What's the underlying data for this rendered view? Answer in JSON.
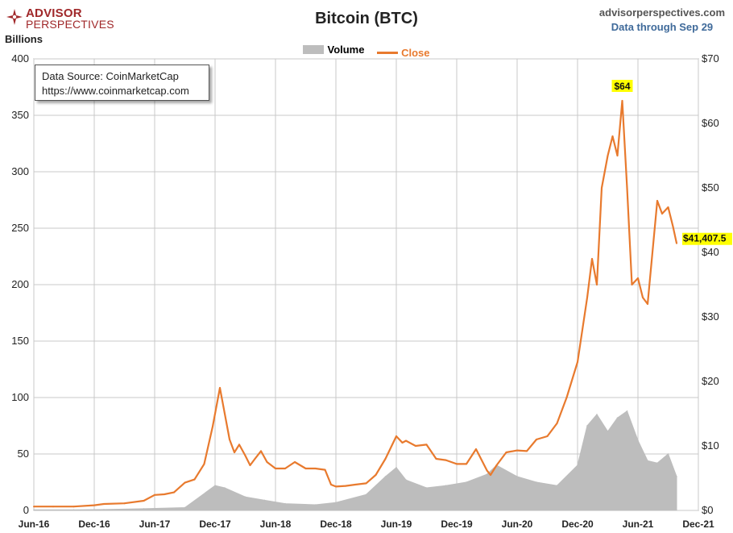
{
  "header": {
    "logo_line1": "ADVISOR",
    "logo_line2": "PERSPECTIVES",
    "title": "Bitcoin (BTC)",
    "site": "advisorperspectives.com",
    "data_through": "Data through Sep 29"
  },
  "source_box": {
    "line1": "Data Source: CoinMarketCap",
    "line2": "https://www.coinmarketcap.com"
  },
  "legend": {
    "volume": "Volume",
    "close": "Close"
  },
  "colors": {
    "close": "#e87a2e",
    "volume": "#bdbdbd",
    "highlight": "#ffff00",
    "grid": "#c8c8c8",
    "brand": "#a0282a"
  },
  "chart_data": {
    "type": "line",
    "ylabel_left": "Billions",
    "left_axis": {
      "min": 0,
      "max": 400,
      "ticks": [
        "0",
        "50",
        "100",
        "150",
        "200",
        "250",
        "300",
        "350",
        "400"
      ]
    },
    "right_axis": {
      "min": 0,
      "max": 70,
      "ticks": [
        "$0",
        "$10",
        "$20",
        "$30",
        "$40",
        "$50",
        "$60",
        "$70"
      ]
    },
    "x_ticks": [
      "Jun-16",
      "Dec-16",
      "Jun-17",
      "Dec-17",
      "Jun-18",
      "Dec-18",
      "Jun-19",
      "Dec-19",
      "Jun-20",
      "Dec-20",
      "Jun-21",
      "Dec-21"
    ],
    "grid": true,
    "legend_position": "top-center",
    "annotations": [
      {
        "text": "$64",
        "x": 2021.29,
        "y": 63.5
      },
      {
        "text": "$41,407.5",
        "x": 2021.74,
        "y": 41.4075
      }
    ],
    "series": [
      {
        "name": "Close",
        "axis": "right",
        "x": [
          2016.42,
          2016.58,
          2016.75,
          2016.92,
          2017.0,
          2017.17,
          2017.33,
          2017.42,
          2017.5,
          2017.58,
          2017.67,
          2017.75,
          2017.83,
          2017.9,
          2017.96,
          2018.0,
          2018.04,
          2018.08,
          2018.12,
          2018.17,
          2018.21,
          2018.25,
          2018.3,
          2018.35,
          2018.42,
          2018.5,
          2018.58,
          2018.67,
          2018.75,
          2018.83,
          2018.88,
          2018.92,
          2019.0,
          2019.08,
          2019.17,
          2019.25,
          2019.33,
          2019.42,
          2019.47,
          2019.5,
          2019.58,
          2019.67,
          2019.75,
          2019.83,
          2019.92,
          2020.0,
          2020.08,
          2020.17,
          2020.2,
          2020.25,
          2020.33,
          2020.42,
          2020.5,
          2020.58,
          2020.67,
          2020.75,
          2020.83,
          2020.92,
          2021.0,
          2021.04,
          2021.08,
          2021.12,
          2021.17,
          2021.21,
          2021.25,
          2021.29,
          2021.33,
          2021.37,
          2021.42,
          2021.46,
          2021.5,
          2021.54,
          2021.58,
          2021.62,
          2021.67,
          2021.71,
          2021.74
        ],
        "y": [
          0.6,
          0.6,
          0.6,
          0.8,
          1.0,
          1.1,
          1.5,
          2.4,
          2.5,
          2.8,
          4.3,
          4.8,
          7.2,
          13.0,
          19.0,
          15.0,
          11.0,
          9.0,
          10.2,
          8.5,
          7.0,
          8.0,
          9.2,
          7.5,
          6.5,
          6.5,
          7.5,
          6.5,
          6.5,
          6.3,
          4.0,
          3.7,
          3.8,
          4.0,
          4.2,
          5.5,
          8.0,
          11.5,
          10.5,
          10.8,
          10.0,
          10.2,
          8.0,
          7.8,
          7.2,
          7.2,
          9.5,
          6.2,
          5.5,
          7.0,
          9.0,
          9.3,
          9.2,
          11.0,
          11.5,
          13.5,
          17.5,
          23.0,
          33.0,
          39.0,
          35.0,
          50.0,
          55.0,
          58.0,
          55.0,
          63.5,
          50.0,
          35.0,
          36.0,
          33.0,
          32.0,
          40.0,
          48.0,
          46.0,
          47.0,
          44.0,
          41.4075
        ]
      },
      {
        "name": "Volume",
        "axis": "left",
        "x": [
          2016.42,
          2016.75,
          2017.0,
          2017.33,
          2017.67,
          2017.92,
          2018.0,
          2018.17,
          2018.33,
          2018.5,
          2018.75,
          2018.92,
          2019.17,
          2019.33,
          2019.42,
          2019.5,
          2019.67,
          2019.83,
          2020.0,
          2020.17,
          2020.25,
          2020.42,
          2020.58,
          2020.75,
          2020.92,
          2021.0,
          2021.08,
          2021.17,
          2021.25,
          2021.33,
          2021.42,
          2021.5,
          2021.58,
          2021.67,
          2021.74
        ],
        "y": [
          0.5,
          0.6,
          0.8,
          1.5,
          2.5,
          22,
          20,
          12,
          9,
          6,
          5,
          7,
          14,
          30,
          38,
          27,
          20,
          22,
          25,
          32,
          40,
          30,
          25,
          22,
          40,
          75,
          85,
          70,
          82,
          88,
          62,
          44,
          42,
          50,
          30
        ]
      }
    ]
  }
}
